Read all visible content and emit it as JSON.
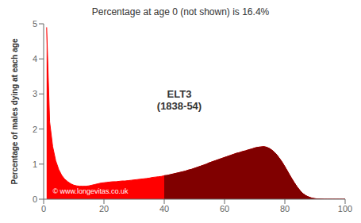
{
  "chart_data": {
    "type": "area",
    "title": "Percentage at age 0 (not shown) is 16.4%",
    "ylabel": "Percentage of males dying at each age",
    "x": [
      1,
      2,
      3,
      4,
      5,
      6,
      7,
      8,
      9,
      10,
      11,
      12,
      13,
      14,
      15,
      16,
      17,
      18,
      19,
      20,
      21,
      22,
      23,
      24,
      25,
      26,
      27,
      28,
      29,
      30,
      31,
      32,
      33,
      34,
      35,
      36,
      37,
      38,
      39,
      40,
      41,
      42,
      43,
      44,
      45,
      46,
      47,
      48,
      49,
      50,
      51,
      52,
      53,
      54,
      55,
      56,
      57,
      58,
      59,
      60,
      61,
      62,
      63,
      64,
      65,
      66,
      67,
      68,
      69,
      70,
      71,
      72,
      73,
      74,
      75,
      76,
      77,
      78,
      79,
      80,
      81,
      82,
      83,
      84,
      85,
      86,
      87,
      88,
      89,
      90,
      91,
      92,
      93,
      94,
      95,
      96,
      97,
      98,
      99,
      100
    ],
    "series": [
      {
        "color": "#ff0000",
        "values": [
          4.9,
          2.2,
          1.5,
          1.1,
          0.85,
          0.68,
          0.57,
          0.5,
          0.44,
          0.4,
          0.38,
          0.37,
          0.37,
          0.37,
          0.38,
          0.4,
          0.42,
          0.44,
          0.46,
          0.47,
          0.48,
          0.49,
          0.5,
          0.5,
          0.51,
          0.52,
          0.52,
          0.53,
          0.54,
          0.55,
          0.56,
          0.57,
          0.58,
          0.59,
          0.6,
          0.62,
          0.63,
          0.64,
          0.65,
          0.67,
          0.68,
          0.7,
          0.72,
          0.74,
          0.76,
          0.78,
          0.8,
          0.83,
          0.85,
          0.88,
          0.91,
          0.94,
          0.97,
          1.0,
          1.04,
          1.07,
          1.1,
          1.13,
          1.16,
          1.19,
          1.22,
          1.25,
          1.28,
          1.31,
          1.33,
          1.36,
          1.38,
          1.41,
          1.43,
          1.46,
          1.48,
          1.49,
          1.5,
          1.48,
          1.44,
          1.38,
          1.3,
          1.19,
          1.07,
          0.93,
          0.78,
          0.63,
          0.49,
          0.36,
          0.25,
          0.16,
          0.1,
          0.06,
          0.03,
          0.015,
          0.007,
          0.003,
          0.001,
          0.0005,
          0.0002,
          0.0001,
          5e-05,
          2e-05,
          1e-05,
          5e-06
        ]
      },
      {
        "color": "#800000",
        "values": [
          null,
          null,
          null,
          null,
          null,
          null,
          null,
          null,
          null,
          null,
          null,
          null,
          null,
          null,
          null,
          null,
          null,
          null,
          null,
          null,
          null,
          null,
          null,
          null,
          null,
          null,
          null,
          null,
          null,
          null,
          null,
          null,
          null,
          null,
          null,
          null,
          null,
          null,
          null,
          0.67,
          0.68,
          0.7,
          0.72,
          0.74,
          0.76,
          0.78,
          0.8,
          0.83,
          0.85,
          0.88,
          0.91,
          0.94,
          0.97,
          1.0,
          1.04,
          1.07,
          1.1,
          1.13,
          1.16,
          1.19,
          1.22,
          1.25,
          1.28,
          1.31,
          1.33,
          1.36,
          1.38,
          1.41,
          1.43,
          1.46,
          1.48,
          1.49,
          1.5,
          1.48,
          1.44,
          1.38,
          1.3,
          1.19,
          1.07,
          0.93,
          0.78,
          0.63,
          0.49,
          0.36,
          0.25,
          0.16,
          0.1,
          0.06,
          0.03,
          0.015,
          0.007,
          0.003,
          0.001,
          0.0005,
          0.0002,
          0.0001,
          5e-05,
          2e-05,
          1e-05,
          5e-06
        ]
      }
    ],
    "annotations": [
      {
        "text": "ELT3\n(1838-54)",
        "x": 45,
        "y": 2.8
      },
      {
        "text": "© www.longevitas.co.uk",
        "x": 3,
        "y": 0.15,
        "color": "#ffffff"
      }
    ],
    "xlim": [
      0,
      100
    ],
    "ylim": [
      0,
      5
    ],
    "xticks": [
      0,
      20,
      40,
      60,
      80,
      100
    ],
    "yticks": [
      0,
      1,
      2,
      3,
      4,
      5
    ]
  }
}
